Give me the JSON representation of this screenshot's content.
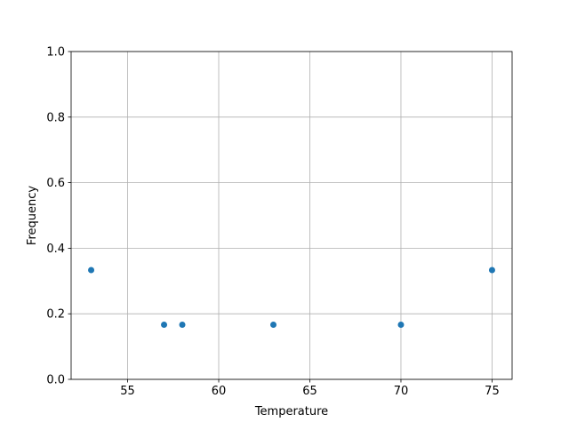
{
  "chart_data": {
    "type": "scatter",
    "title": "",
    "xlabel": "Temperature",
    "ylabel": "Frequency",
    "x": [
      53,
      57,
      58,
      63,
      70,
      75
    ],
    "y": [
      0.3333,
      0.1667,
      0.1667,
      0.1667,
      0.1667,
      0.3333
    ],
    "xlim": [
      51.9,
      76.1
    ],
    "ylim": [
      0,
      1
    ],
    "xticks": [
      55,
      60,
      65,
      70,
      75
    ],
    "xtick_labels": [
      "55",
      "60",
      "65",
      "70",
      "75"
    ],
    "yticks": [
      0,
      0.2,
      0.4,
      0.6,
      0.8,
      1.0
    ],
    "ytick_labels": [
      "0.0",
      "0.2",
      "0.4",
      "0.6",
      "0.8",
      "1.0"
    ],
    "grid": true,
    "marker_color": "#1f77b4",
    "grid_color": "#b0b0b0"
  }
}
